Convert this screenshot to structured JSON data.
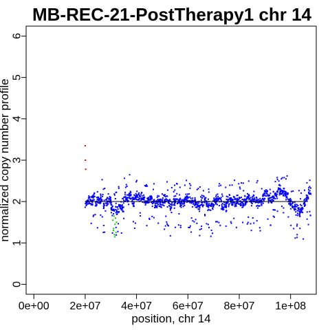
{
  "chart_data": {
    "type": "scatter",
    "title": "MB-REC-21-PostTherapy1 chr 14",
    "xlabel": "position, chr 14",
    "ylabel": "normalized copy number profile",
    "xlim": [
      -3000000,
      110000000
    ],
    "ylim": [
      -0.24,
      6.24
    ],
    "x_ticks": [
      {
        "value": 0,
        "label": "0e+00"
      },
      {
        "value": 20000000,
        "label": "2e+07"
      },
      {
        "value": 40000000,
        "label": "4e+07"
      },
      {
        "value": 60000000,
        "label": "6e+07"
      },
      {
        "value": 80000000,
        "label": "8e+07"
      },
      {
        "value": 100000000,
        "label": "1e+08"
      }
    ],
    "y_ticks": [
      {
        "value": 0,
        "label": "0"
      },
      {
        "value": 1,
        "label": "1"
      },
      {
        "value": 2,
        "label": "2"
      },
      {
        "value": 3,
        "label": "3"
      },
      {
        "value": 4,
        "label": "4"
      },
      {
        "value": 5,
        "label": "5"
      },
      {
        "value": 6,
        "label": "6"
      }
    ],
    "grid": false,
    "colors": {
      "normal": "#0000ff",
      "loss": "#00cc00",
      "gain": "#cc0000",
      "segment": "#000000"
    },
    "gain_points": {
      "x": [
        20000000,
        20100000,
        20200000
      ],
      "y": [
        3.35,
        3.0,
        2.78
      ]
    },
    "loss_points": {
      "x": [
        30800000,
        31000000,
        31200000,
        31400000,
        31600000,
        31800000,
        32000000,
        32200000,
        31100000,
        31500000
      ],
      "y": [
        1.55,
        1.3,
        1.65,
        1.2,
        1.45,
        1.6,
        1.25,
        1.5,
        1.35,
        1.15
      ]
    },
    "normal_profile": {
      "x": [
        20000000,
        21000000,
        22000000,
        23000000,
        24000000,
        25000000,
        26000000,
        27000000,
        28000000,
        29000000,
        30000000,
        31000000,
        32000000,
        33000000,
        34000000,
        35000000,
        36000000,
        37000000,
        38000000,
        39000000,
        40000000,
        41000000,
        42000000,
        43000000,
        44000000,
        45000000,
        46000000,
        47000000,
        48000000,
        49000000,
        50000000,
        51000000,
        52000000,
        53000000,
        54000000,
        55000000,
        56000000,
        57000000,
        58000000,
        59000000,
        60000000,
        61000000,
        62000000,
        63000000,
        64000000,
        65000000,
        66000000,
        67000000,
        68000000,
        69000000,
        70000000,
        71000000,
        72000000,
        73000000,
        74000000,
        75000000,
        76000000,
        77000000,
        78000000,
        79000000,
        80000000,
        81000000,
        82000000,
        83000000,
        84000000,
        85000000,
        86000000,
        87000000,
        88000000,
        89000000,
        90000000,
        91000000,
        92000000,
        93000000,
        94000000,
        95000000,
        96000000,
        97000000,
        98000000,
        99000000,
        100000000,
        101000000,
        102000000,
        103000000,
        104000000,
        105000000,
        106000000,
        107000000
      ],
      "y": [
        1.95,
        2.05,
        2.0,
        2.1,
        1.98,
        2.02,
        2.08,
        1.92,
        2.0,
        2.05,
        1.85,
        1.8,
        1.75,
        1.9,
        1.85,
        2.1,
        2.05,
        2.15,
        2.0,
        2.1,
        2.12,
        2.08,
        2.05,
        2.0,
        2.02,
        2.1,
        1.98,
        1.95,
        2.0,
        1.97,
        2.0,
        2.05,
        1.98,
        1.9,
        2.0,
        2.05,
        2.02,
        1.95,
        2.0,
        2.1,
        2.05,
        2.0,
        1.98,
        1.95,
        1.9,
        2.0,
        2.05,
        1.95,
        1.9,
        1.92,
        2.0,
        2.05,
        2.02,
        1.85,
        1.9,
        2.0,
        2.05,
        2.05,
        2.0,
        2.08,
        2.0,
        1.95,
        2.05,
        2.1,
        2.0,
        2.05,
        2.0,
        1.95,
        2.0,
        2.1,
        2.2,
        2.1,
        2.05,
        2.15,
        2.2,
        2.3,
        2.25,
        2.2,
        2.15,
        2.0,
        1.95,
        1.85,
        1.8,
        1.75,
        1.8,
        1.95,
        2.1,
        2.25
      ]
    },
    "segments": [
      {
        "x_start": 20000000,
        "x_end": 106000000,
        "y": 2.0
      }
    ]
  }
}
